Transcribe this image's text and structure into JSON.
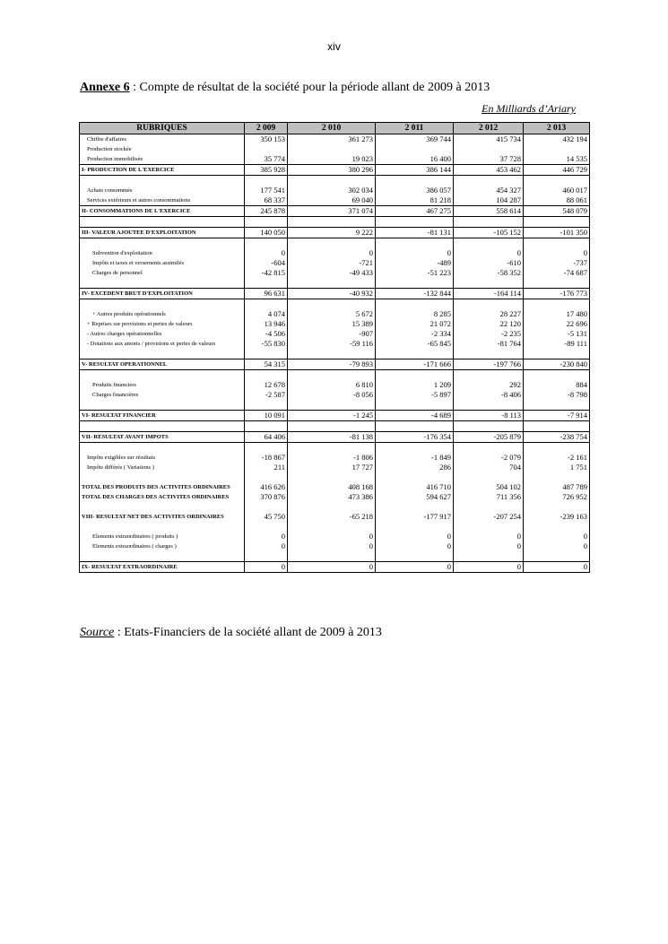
{
  "page_number": "xiv",
  "title": {
    "label": "Annexe 6",
    "text": " : Compte de résultat de la société pour la période allant de 2009 à 2013"
  },
  "unit": "En Milliards d’Ariary",
  "table": {
    "headers": [
      "RUBRIQUES",
      "2 009",
      "2 010",
      "2 011",
      "2 012",
      "2 013"
    ],
    "rows": [
      {
        "label": "Chiffre d'affaires",
        "indent": 1,
        "values": [
          "350 153",
          "361 273",
          "369 744",
          "415 734",
          "432 194"
        ]
      },
      {
        "label": "Production stockée",
        "indent": 1,
        "values": [
          "",
          "",
          "",
          "",
          ""
        ]
      },
      {
        "label": "Production immobilisée",
        "indent": 1,
        "values": [
          "35 774",
          "19 023",
          "16 400",
          "37 728",
          "14 535"
        ]
      },
      {
        "label": "I- PRODUCTION DE L'EXERCICE",
        "type": "total",
        "values": [
          "385 928",
          "380 296",
          "386 144",
          "453 462",
          "446 729"
        ]
      },
      {
        "label": "",
        "values": [
          "",
          "",
          "",
          "",
          ""
        ]
      },
      {
        "label": "Achats consommés",
        "indent": 1,
        "values": [
          "177 541",
          "302 034",
          "386 057",
          "454 327",
          "460 017"
        ]
      },
      {
        "label": "Services extérieurs et autres consommations",
        "indent": 1,
        "values": [
          "68 337",
          "69 040",
          "81 218",
          "104 287",
          "88 061"
        ]
      },
      {
        "label": "II- CONSOMMATIONS DE L'EXERCICE",
        "type": "total",
        "values": [
          "245 878",
          "371 074",
          "467 275",
          "558 614",
          "548 079"
        ]
      },
      {
        "label": "",
        "values": [
          "",
          "",
          "",
          "",
          ""
        ]
      },
      {
        "label": "III- VALEUR AJOUTEE D'EXPLOITATION",
        "type": "total",
        "values": [
          "140 050",
          "9 222",
          "-81 131",
          "-105 152",
          "-101 350"
        ]
      },
      {
        "label": "",
        "values": [
          "",
          "",
          "",
          "",
          ""
        ]
      },
      {
        "label": "Subvention d'exploitation",
        "indent": 2,
        "values": [
          "0",
          "0",
          "0",
          "0",
          "0"
        ]
      },
      {
        "label": "Impôts et taxes et versements assimilés",
        "indent": 2,
        "values": [
          "-604",
          "-721",
          "-489",
          "-610",
          "-737"
        ]
      },
      {
        "label": "Charges de personnel",
        "indent": 2,
        "values": [
          "-42 815",
          "-49 433",
          "-51 223",
          "-58 352",
          "-74 687"
        ]
      },
      {
        "label": "",
        "values": [
          "",
          "",
          "",
          "",
          ""
        ]
      },
      {
        "label": "IV- EXCEDENT BRUT D'EXPLOITATION",
        "type": "total",
        "values": [
          "96 631",
          "-40 932",
          "-132 844",
          "-164 114",
          "-176 773"
        ]
      },
      {
        "label": "",
        "values": [
          "",
          "",
          "",
          "",
          ""
        ]
      },
      {
        "label": "+ Autres produits opérationnels",
        "indent": 2,
        "values": [
          "4 074",
          "5 672",
          "8 285",
          "28 227",
          "17 480"
        ]
      },
      {
        "label": "+ Reprises sur provisions et pertes de valeurs",
        "indent": 1,
        "values": [
          "13 946",
          "15 389",
          "21 072",
          "22 120",
          "22 696"
        ]
      },
      {
        "label": "- Autres charges opérationnelles",
        "indent": 1,
        "values": [
          "-4 506",
          "-907",
          "-2 334",
          "-2 235",
          "-5 131"
        ]
      },
      {
        "label": "- Dotations aux amorts / provisions et pertes de valeurs",
        "indent": 1,
        "values": [
          "-55 830",
          "-59 116",
          "-65 845",
          "-81 764",
          "-89 111"
        ]
      },
      {
        "label": "",
        "values": [
          "",
          "",
          "",
          "",
          ""
        ]
      },
      {
        "label": "V- RESULTAT OPERATIONNEL",
        "type": "total",
        "values": [
          "54 315",
          "-79 893",
          "-171 666",
          "-197 766",
          "-230 840"
        ]
      },
      {
        "label": "",
        "values": [
          "",
          "",
          "",
          "",
          ""
        ]
      },
      {
        "label": "Produits financiers",
        "indent": 2,
        "values": [
          "12 678",
          "6 810",
          "1 209",
          "292",
          "884"
        ]
      },
      {
        "label": "Charges financières",
        "indent": 2,
        "values": [
          "-2 587",
          "-8 056",
          "-5 897",
          "-8 406",
          "-8 798"
        ]
      },
      {
        "label": "",
        "values": [
          "",
          "",
          "",
          "",
          ""
        ]
      },
      {
        "label": "VI- RESULTAT FINANCIER",
        "type": "total",
        "values": [
          "10 091",
          "-1 245",
          "-4 689",
          "-8 113",
          "-7 914"
        ]
      },
      {
        "label": "",
        "values": [
          "",
          "",
          "",
          "",
          ""
        ]
      },
      {
        "label": "VII- RESULTAT AVANT IMPOTS",
        "type": "total",
        "values": [
          "64 406",
          "-81 138",
          "-176 354",
          "-205 879",
          "-238 754"
        ]
      },
      {
        "label": "",
        "values": [
          "",
          "",
          "",
          "",
          ""
        ]
      },
      {
        "label": "Impôts exigibles sur résultats",
        "indent": 1,
        "values": [
          "-18 867",
          "-1 806",
          "-1 849",
          "-2 079",
          "-2 161"
        ]
      },
      {
        "label": "Impôts différés ( Variations )",
        "indent": 1,
        "values": [
          "211",
          "17 727",
          "286",
          "704",
          "1 751"
        ]
      },
      {
        "label": "",
        "values": [
          "",
          "",
          "",
          "",
          ""
        ]
      },
      {
        "label": "TOTAL DES PRODUITS DES ACTIVITES ORDINAIRES",
        "type": "bold",
        "values": [
          "416 626",
          "408 168",
          "416 710",
          "504 102",
          "487 789"
        ]
      },
      {
        "label": "TOTAL DES CHARGES DES ACTIVITES ORDINAIRES",
        "type": "bold",
        "values": [
          "370 876",
          "473 386",
          "594 627",
          "711 356",
          "726 952"
        ]
      },
      {
        "label": "",
        "values": [
          "",
          "",
          "",
          "",
          ""
        ]
      },
      {
        "label": "VIII- RESULTAT NET DES ACTIVITES ORDINAIRES",
        "type": "bold",
        "values": [
          "45 750",
          "-65 218",
          "-177 917",
          "-207 254",
          "-239 163"
        ]
      },
      {
        "label": "",
        "values": [
          "",
          "",
          "",
          "",
          ""
        ]
      },
      {
        "label": "Elements extraordinaires ( produits )",
        "indent": 2,
        "values": [
          "0",
          "0",
          "0",
          "0",
          "0"
        ]
      },
      {
        "label": "Elements extraordinaires ( charges )",
        "indent": 2,
        "values": [
          "0",
          "0",
          "0",
          "0",
          "0"
        ]
      },
      {
        "label": "",
        "values": [
          "",
          "",
          "",
          "",
          ""
        ]
      },
      {
        "label": "IX- RESULTAT EXTRAORDINAIRE",
        "type": "total",
        "values": [
          "0",
          "0",
          "0",
          "0",
          "0"
        ]
      }
    ]
  },
  "source": {
    "label": "Source",
    "text": " : Etats-Financiers de la société allant de 2009 à 2013"
  }
}
